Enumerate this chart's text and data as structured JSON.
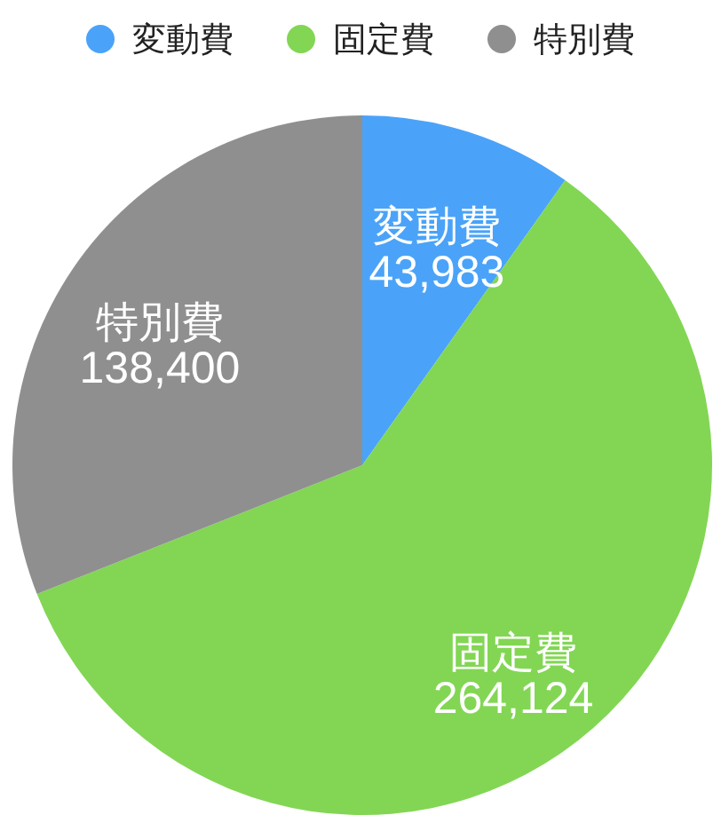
{
  "chart_data": {
    "type": "pie",
    "categories": [
      "変動費",
      "固定費",
      "特別費"
    ],
    "values": [
      43983,
      264124,
      138400
    ],
    "value_labels": [
      "43,983",
      "264,124",
      "138,400"
    ],
    "colors": [
      "#4aa3f8",
      "#82d654",
      "#8f8f8f"
    ],
    "legend": "top"
  }
}
